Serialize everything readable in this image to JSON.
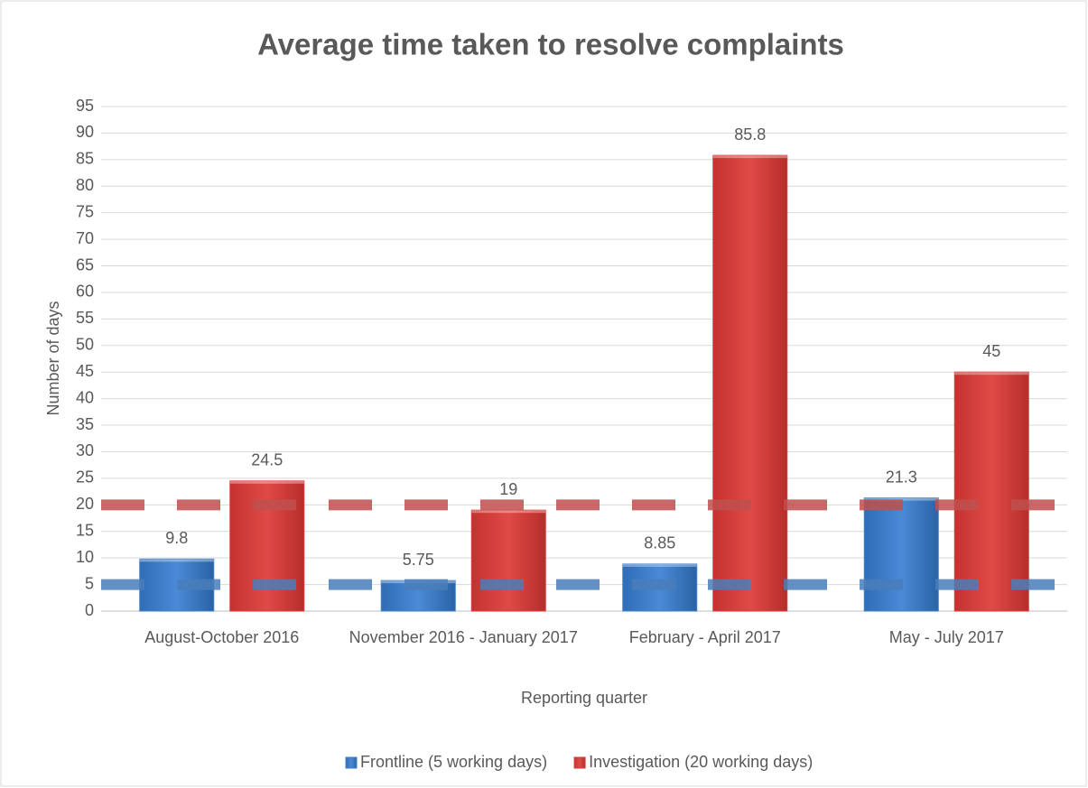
{
  "chart_data": {
    "type": "bar",
    "title": "Average time taken to resolve complaints",
    "x_label": "Reporting quarter",
    "y_label": "Number of days",
    "categories": [
      "August-October 2016",
      "November 2016 - January 2017",
      "February - April 2017",
      "May - July 2017"
    ],
    "series": [
      {
        "name": "Frontline (5 working days)",
        "color": "#3f7fc9",
        "target": 5,
        "values": [
          9.8,
          5.75,
          8.85,
          21.3
        ]
      },
      {
        "name": "Investigation (20 working days)",
        "color": "#d63c3a",
        "target": 20,
        "values": [
          24.5,
          19,
          85.8,
          45
        ]
      }
    ],
    "ylim": [
      0,
      95
    ],
    "yticks": [
      0,
      5,
      10,
      15,
      20,
      25,
      30,
      35,
      40,
      45,
      50,
      55,
      60,
      65,
      70,
      75,
      80,
      85,
      90,
      95
    ],
    "grid": true,
    "legend": "bottom"
  }
}
